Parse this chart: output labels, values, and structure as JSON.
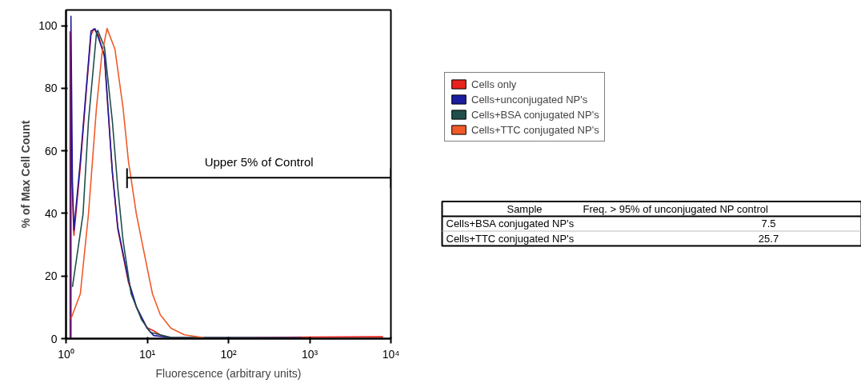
{
  "chart_data": {
    "type": "line",
    "xlabel": "Fluorescence (arbitrary units)",
    "ylabel": "% of Max Cell Count",
    "log": "x",
    "xlim": [
      1,
      10000
    ],
    "ylim": [
      0,
      105
    ],
    "xticks": [
      {
        "value": 1,
        "label": "10⁰"
      },
      {
        "value": 10,
        "label": "10¹"
      },
      {
        "value": 100,
        "label": "10²"
      },
      {
        "value": 1000,
        "label": "10³"
      },
      {
        "value": 10000,
        "label": "10⁴"
      }
    ],
    "yticks": [
      0,
      20,
      40,
      60,
      80,
      100
    ],
    "grid": false,
    "legend": "right",
    "marker": "none",
    "line_style": "solid",
    "series": [
      {
        "name": "Cells only",
        "color": "#e8221c",
        "x": [
          1.12,
          1.12,
          1.15,
          1.25,
          1.5,
          1.75,
          2.03,
          2.2,
          2.5,
          2.97,
          3.72,
          4.34,
          5.87,
          7.35,
          9.95,
          12,
          15,
          20,
          100,
          1000,
          8000
        ],
        "values": [
          0,
          98,
          60,
          33,
          55,
          77,
          97,
          99,
          97,
          90,
          53,
          35,
          18,
          10,
          3.5,
          2.5,
          1,
          0.3,
          0.3,
          0.5,
          0.6
        ]
      },
      {
        "name": "Cells+unconjugated NP's",
        "color": "#1c1ca0",
        "x": [
          1.15,
          1.15,
          1.2,
          1.25,
          1.5,
          1.75,
          2.03,
          2.28,
          2.97,
          3.72,
          4.34,
          5.87,
          7.35,
          9.95,
          12,
          20,
          100,
          800
        ],
        "values": [
          0,
          103,
          50,
          34.6,
          56.7,
          77.9,
          98.3,
          99,
          90.7,
          53.4,
          35.6,
          18.6,
          10.2,
          3.3,
          1,
          0.3,
          0.3,
          0.3
        ]
      },
      {
        "name": "Cells+BSA conjugated NP's",
        "color": "#1f4f4a",
        "x": [
          1.2,
          1.62,
          1.89,
          2.37,
          2.46,
          2.97,
          3.72,
          4.34,
          5.04,
          6.33,
          8.57,
          11,
          20,
          100,
          1000
        ],
        "values": [
          16.5,
          39.8,
          69.5,
          97.5,
          98.5,
          93.2,
          69.5,
          48.2,
          31.3,
          14.3,
          5.9,
          2,
          0.3,
          0.3,
          0.2
        ]
      },
      {
        "name": "Cells+TTC conjugated NP's",
        "color": "#f05a28",
        "x": [
          1.15,
          1.5,
          1.89,
          2.37,
          2.76,
          3.2,
          4.01,
          5.04,
          5.87,
          7.35,
          9.23,
          11.6,
          14.5,
          19.6,
          28.7,
          50
        ],
        "values": [
          6.3,
          14.3,
          39.8,
          73.7,
          90.7,
          99.1,
          92.4,
          73.7,
          56.7,
          39.8,
          27,
          14.3,
          7.6,
          3.3,
          1.2,
          0.3
        ]
      },
      {
        "color": "#000000",
        "x": [
          5.64,
          5.64,
          5.64,
          10000,
          10000,
          10000
        ],
        "values": [
          48.1,
          54.2,
          51.4,
          51.4,
          54.2,
          48.1
        ]
      }
    ],
    "annotations": [
      "Upper 5% of Control",
      "Sample",
      "Freq. > 95% of unconjugated NP control",
      "Cells+BSA conjugated NP's",
      "7.5",
      "Cells+TTC conjugated NP's",
      "25.7"
    ]
  }
}
